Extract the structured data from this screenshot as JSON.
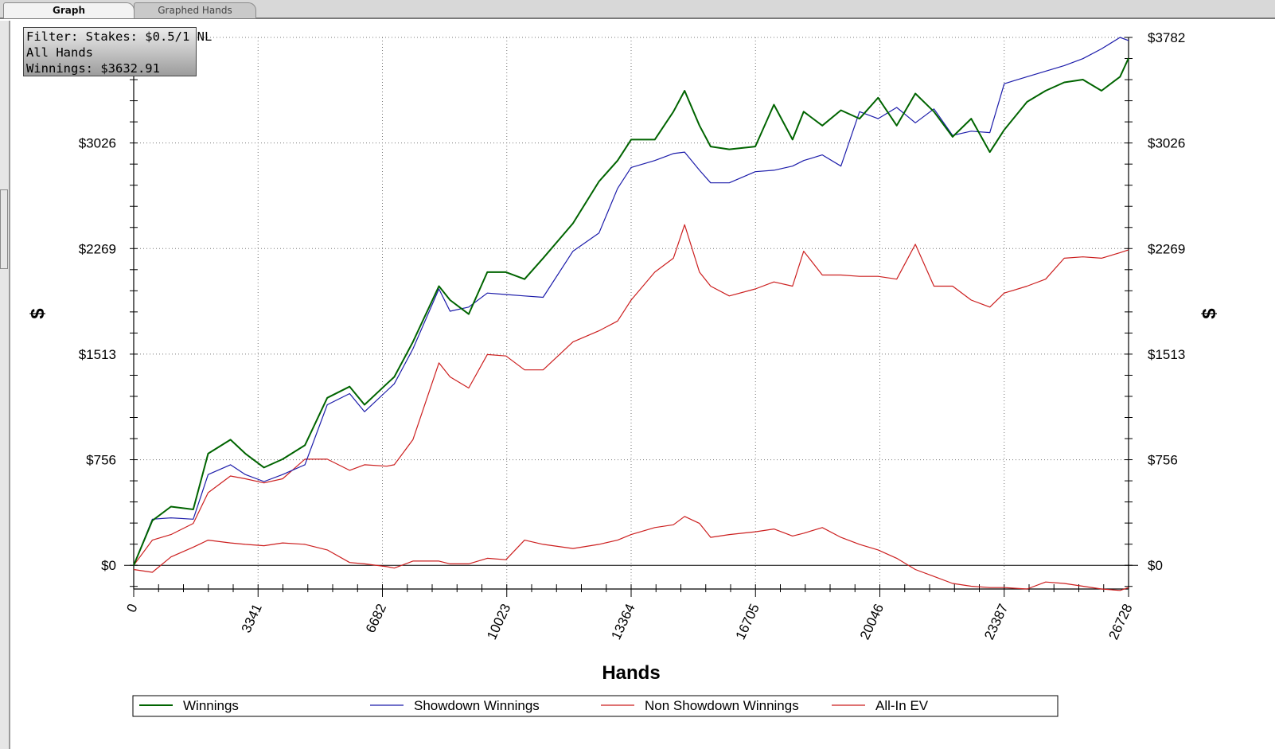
{
  "tabs": [
    {
      "label": "Graph",
      "active": true
    },
    {
      "label": "Graphed Hands",
      "active": false
    }
  ],
  "filter_box": {
    "line1": "Filter: Stakes: $0.5/1 NL",
    "line2": "All Hands",
    "line3": "Winnings: $3632.91"
  },
  "colors": {
    "winnings": "#006400",
    "showdown": "#1c1caa",
    "non_showdown": "#cc1f1f",
    "all_in_ev": "#cc1f1f"
  },
  "chart_data": {
    "type": "line",
    "xlabel": "Hands",
    "ylabel": "$",
    "xlim": [
      0,
      26728
    ],
    "ylim": [
      -170,
      3782
    ],
    "x_ticks": [
      0,
      3341,
      6682,
      10023,
      13364,
      16705,
      20046,
      23387,
      26728
    ],
    "y_ticks": [
      {
        "value": 0,
        "label": "$0"
      },
      {
        "value": 756,
        "label": "$756"
      },
      {
        "value": 1513,
        "label": "$1513"
      },
      {
        "value": 2269,
        "label": "$2269"
      },
      {
        "value": 3026,
        "label": "$3026"
      },
      {
        "value": 3782,
        "label": "$3782"
      }
    ],
    "grid": true,
    "legend_position": "bottom",
    "series": [
      {
        "name": "Winnings",
        "x": [
          0,
          500,
          1000,
          1600,
          2000,
          2600,
          3000,
          3500,
          4000,
          4600,
          5200,
          5800,
          6200,
          6800,
          7000,
          7500,
          8200,
          8500,
          9000,
          9500,
          10000,
          10500,
          11000,
          11800,
          12500,
          13000,
          13364,
          14000,
          14500,
          14800,
          15200,
          15500,
          16000,
          16700,
          17200,
          17700,
          18000,
          18500,
          19000,
          19500,
          20000,
          20500,
          21000,
          21500,
          22000,
          22500,
          23000,
          23387,
          24000,
          24500,
          25000,
          25500,
          26000,
          26500,
          26728
        ],
        "y": [
          0,
          320,
          420,
          400,
          800,
          900,
          800,
          700,
          760,
          860,
          1200,
          1280,
          1150,
          1300,
          1350,
          1600,
          2000,
          1900,
          1800,
          2100,
          2100,
          2050,
          2200,
          2450,
          2750,
          2900,
          3050,
          3050,
          3250,
          3400,
          3150,
          3000,
          2980,
          3000,
          3300,
          3050,
          3250,
          3150,
          3260,
          3200,
          3350,
          3150,
          3380,
          3250,
          3070,
          3200,
          2960,
          3120,
          3320,
          3400,
          3460,
          3480,
          3400,
          3500,
          3632.91
        ]
      },
      {
        "name": "Showdown Winnings",
        "x": [
          0,
          500,
          1000,
          1600,
          2000,
          2600,
          3000,
          3500,
          4000,
          4600,
          5200,
          5800,
          6200,
          6800,
          7000,
          7500,
          8200,
          8500,
          9000,
          9500,
          10000,
          10500,
          11000,
          11800,
          12500,
          13000,
          13364,
          14000,
          14500,
          14800,
          15200,
          15500,
          16000,
          16700,
          17200,
          17700,
          18000,
          18500,
          19000,
          19500,
          20000,
          20500,
          21000,
          21500,
          22000,
          22500,
          23000,
          23387,
          24000,
          24500,
          25000,
          25500,
          26000,
          26500,
          26728
        ],
        "y": [
          0,
          330,
          340,
          330,
          650,
          720,
          650,
          600,
          650,
          720,
          1150,
          1230,
          1100,
          1250,
          1300,
          1550,
          1980,
          1820,
          1850,
          1950,
          1940,
          1930,
          1920,
          2250,
          2380,
          2700,
          2850,
          2900,
          2950,
          2960,
          2830,
          2740,
          2740,
          2820,
          2830,
          2860,
          2900,
          2940,
          2860,
          3250,
          3200,
          3280,
          3170,
          3270,
          3080,
          3110,
          3100,
          3450,
          3500,
          3540,
          3580,
          3630,
          3700,
          3782,
          3760
        ]
      },
      {
        "name": "Non Showdown Winnings",
        "x": [
          0,
          500,
          1000,
          1600,
          2000,
          2600,
          3000,
          3500,
          4000,
          4600,
          5200,
          5800,
          6200,
          6800,
          7000,
          7500,
          8200,
          8500,
          9000,
          9500,
          10000,
          10500,
          11000,
          11800,
          12500,
          13000,
          13364,
          14000,
          14500,
          14800,
          15200,
          15500,
          16000,
          16700,
          17200,
          17700,
          18000,
          18500,
          19000,
          19500,
          20000,
          20500,
          21000,
          21500,
          22000,
          22500,
          23000,
          23387,
          24000,
          24500,
          25000,
          25500,
          26000,
          26500,
          26728
        ],
        "y": [
          0,
          180,
          220,
          300,
          520,
          640,
          620,
          590,
          620,
          760,
          760,
          680,
          720,
          710,
          720,
          900,
          1450,
          1350,
          1270,
          1510,
          1500,
          1400,
          1400,
          1600,
          1680,
          1750,
          1900,
          2100,
          2200,
          2440,
          2100,
          2000,
          1930,
          1980,
          2030,
          2000,
          2250,
          2080,
          2080,
          2070,
          2070,
          2050,
          2300,
          2000,
          2000,
          1900,
          1850,
          1950,
          2000,
          2050,
          2200,
          2210,
          2200,
          2240,
          2260
        ]
      },
      {
        "name": "All-In EV",
        "x": [
          0,
          500,
          1000,
          1600,
          2000,
          2600,
          3000,
          3500,
          4000,
          4600,
          5200,
          5800,
          6200,
          6800,
          7000,
          7500,
          8200,
          8500,
          9000,
          9500,
          10000,
          10500,
          11000,
          11800,
          12500,
          13000,
          13364,
          14000,
          14500,
          14800,
          15200,
          15500,
          16000,
          16700,
          17200,
          17700,
          18000,
          18500,
          19000,
          19500,
          20000,
          20500,
          21000,
          21500,
          22000,
          22500,
          23000,
          23387,
          24000,
          24500,
          25000,
          25500,
          26000,
          26500,
          26728
        ],
        "y": [
          -30,
          -50,
          60,
          130,
          180,
          160,
          150,
          140,
          160,
          150,
          110,
          20,
          10,
          -10,
          -20,
          30,
          30,
          10,
          10,
          50,
          40,
          180,
          150,
          120,
          150,
          180,
          220,
          270,
          290,
          350,
          300,
          200,
          220,
          240,
          260,
          210,
          230,
          270,
          200,
          150,
          110,
          50,
          -30,
          -80,
          -130,
          -150,
          -160,
          -160,
          -170,
          -120,
          -130,
          -150,
          -170,
          -180,
          -160
        ]
      }
    ]
  }
}
